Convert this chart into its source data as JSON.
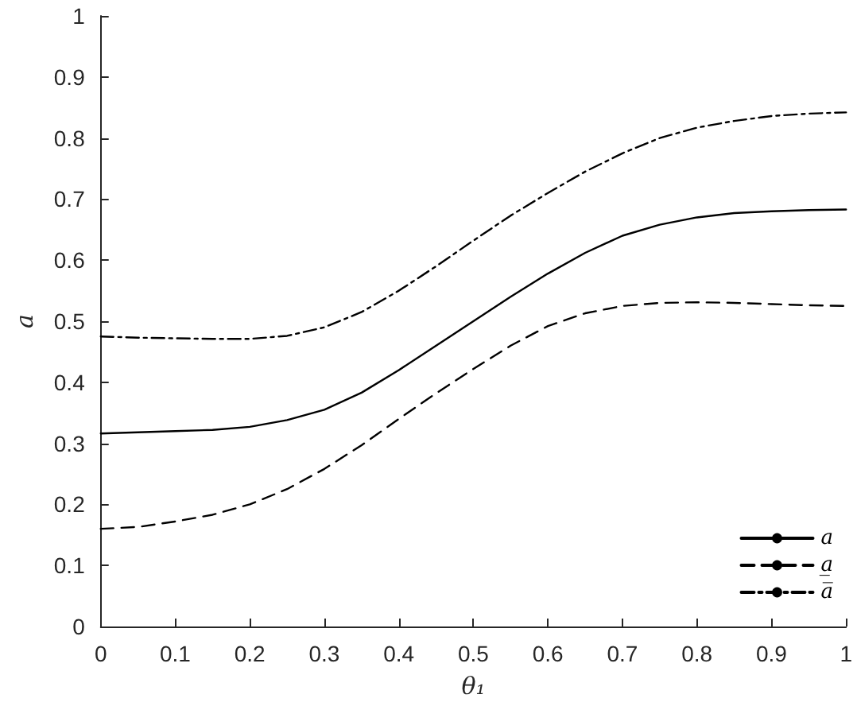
{
  "chart_data": {
    "type": "line",
    "xlabel": "θ₁",
    "ylabel": "a",
    "x": [
      0,
      0.05,
      0.1,
      0.15,
      0.2,
      0.25,
      0.3,
      0.35,
      0.4,
      0.45,
      0.5,
      0.55,
      0.6,
      0.65,
      0.7,
      0.75,
      0.8,
      0.85,
      0.9,
      0.95,
      1
    ],
    "series": [
      {
        "name": "a",
        "color": "#000000",
        "line_style": "solid",
        "values": [
          0.316,
          0.318,
          0.32,
          0.322,
          0.327,
          0.338,
          0.355,
          0.383,
          0.42,
          0.46,
          0.5,
          0.54,
          0.578,
          0.612,
          0.64,
          0.658,
          0.67,
          0.677,
          0.68,
          0.682,
          0.683
        ]
      },
      {
        "name": "a̲",
        "color": "#000000",
        "line_style": "dashed",
        "values": [
          0.16,
          0.163,
          0.172,
          0.183,
          0.2,
          0.225,
          0.258,
          0.297,
          0.34,
          0.382,
          0.422,
          0.46,
          0.492,
          0.513,
          0.525,
          0.53,
          0.531,
          0.53,
          0.528,
          0.526,
          0.525
        ]
      },
      {
        "name": "a̅",
        "color": "#000000",
        "line_style": "dashdot",
        "values": [
          0.475,
          0.473,
          0.472,
          0.471,
          0.471,
          0.476,
          0.49,
          0.515,
          0.55,
          0.59,
          0.632,
          0.673,
          0.71,
          0.745,
          0.775,
          0.8,
          0.817,
          0.828,
          0.836,
          0.84,
          0.842
        ]
      }
    ],
    "xlim": [
      0,
      1
    ],
    "xticks": [
      0,
      0.1,
      0.2,
      0.3,
      0.4,
      0.5,
      0.6,
      0.7,
      0.8,
      0.9,
      1
    ],
    "ylim": [
      0,
      1
    ],
    "yticks": [
      0,
      0.1,
      0.2,
      0.3,
      0.4,
      0.5,
      0.6,
      0.7,
      0.8,
      0.9,
      1
    ],
    "grid": false,
    "legend": "bottom right",
    "marker": "none"
  }
}
